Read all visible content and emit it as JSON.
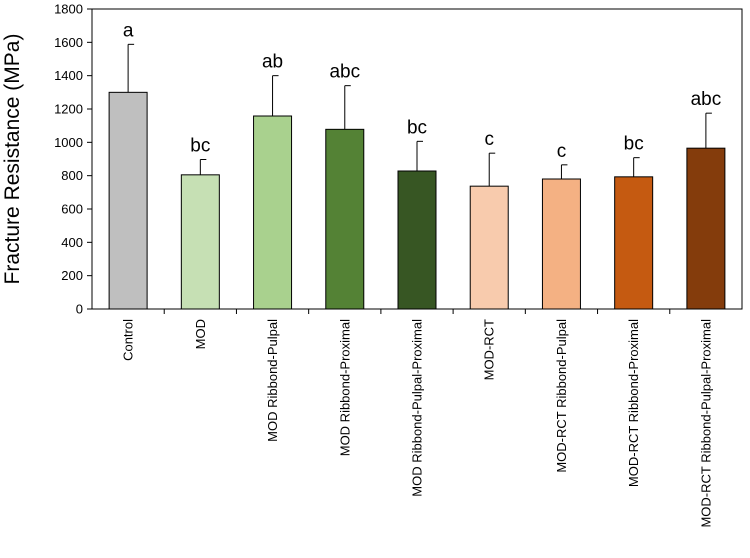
{
  "chart_data": {
    "type": "bar",
    "title": "",
    "xlabel": "",
    "ylabel": "Fracture Resistance (MPa)",
    "ylim": [
      0,
      1800
    ],
    "yticks": [
      0,
      200,
      400,
      600,
      800,
      1000,
      1200,
      1400,
      1600,
      1800
    ],
    "grid": false,
    "legend": "none",
    "categories": [
      "Control",
      "MOD",
      "MOD Ribbond-Pulpal",
      "MOD Ribbond-Proximal",
      "MOD Ribbond-Pulpal-Proximal",
      "MOD-RCT",
      "MOD-RCT Ribbond-Pulpal",
      "MOD-RCT Ribbond-Proximal",
      "MOD-RCT Ribbond-Pulpal-Proximal"
    ],
    "values": [
      1300,
      805,
      1158,
      1078,
      828,
      737,
      780,
      793,
      965
    ],
    "errors": [
      288,
      92,
      242,
      262,
      178,
      198,
      85,
      115,
      210
    ],
    "significance_labels": [
      "a",
      "bc",
      "ab",
      "abc",
      "bc",
      "c",
      "c",
      "bc",
      "abc"
    ],
    "colors": [
      "#BFBFBF",
      "#C6E0B4",
      "#A9D18E",
      "#548235",
      "#375623",
      "#F8CBAD",
      "#F4B183",
      "#C55A11",
      "#843C0C"
    ]
  }
}
